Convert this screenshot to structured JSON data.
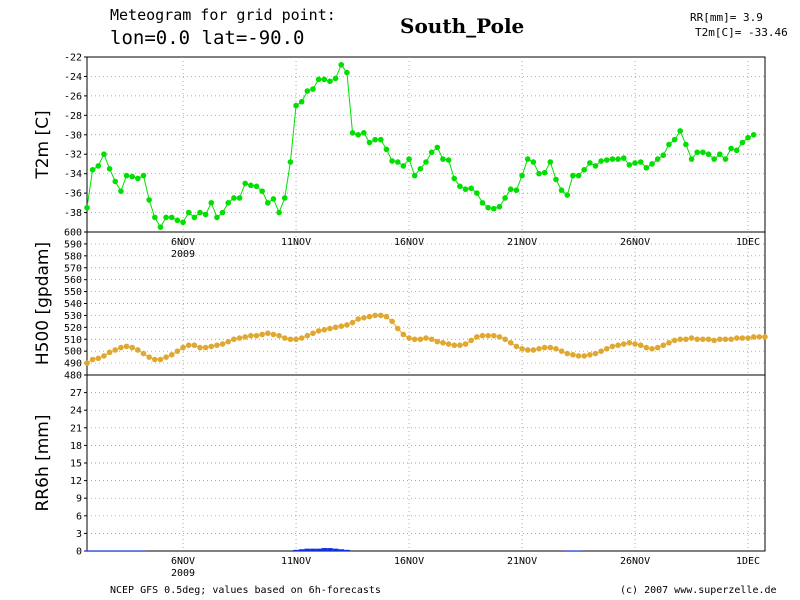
{
  "header": {
    "line1": "Meteogram for grid point:",
    "line2": "lon=0.0 lat=-90.0",
    "station": "South_Pole",
    "rr_readout": "RR[mm]= 3.9",
    "t2m_readout": "T2m[C]= -33.46"
  },
  "footer": {
    "source": "NCEP GFS 0.5deg; values based on 6h-forecasts",
    "copyright": "(c) 2007 www.superzelle.de"
  },
  "colors": {
    "t2m": "#00e000",
    "h500": "#e0a830",
    "rr6h": "#1030e0",
    "text": "#000000"
  },
  "chart_data": [
    {
      "type": "line",
      "ylabel": "T2m [C]",
      "ylim": [
        -40,
        -22
      ],
      "yticks": [
        -38,
        -36,
        -34,
        -32,
        -30,
        -28,
        -26,
        -24,
        -22
      ],
      "xlim": [
        0,
        120
      ],
      "xticks": [
        {
          "x": 17,
          "label": "6NOV"
        },
        {
          "x": 37,
          "label": "11NOV"
        },
        {
          "x": 57,
          "label": "16NOV"
        },
        {
          "x": 77,
          "label": "21NOV"
        },
        {
          "x": 97,
          "label": "26NOV"
        },
        {
          "x": 117,
          "label": "1DEC"
        }
      ],
      "series": [
        {
          "values": [
            -37.5,
            -33.6,
            -33.2,
            -32.0,
            -33.5,
            -34.8,
            -35.8,
            -34.2,
            -34.3,
            -34.5,
            -34.2,
            -36.7,
            -38.5,
            -39.5,
            -38.5,
            -38.5,
            -38.8,
            -39.0,
            -38.0,
            -38.5,
            -38.0,
            -38.2,
            -37.0,
            -38.5,
            -38.0,
            -37.0,
            -36.5,
            -36.5,
            -35.0,
            -35.2,
            -35.3,
            -35.8,
            -37.0,
            -36.6,
            -38.0,
            -36.5,
            -32.8,
            -27.0,
            -26.6,
            -25.5,
            -25.3,
            -24.3,
            -24.3,
            -24.5,
            -24.2,
            -22.8,
            -23.6,
            -29.8,
            -30.0,
            -29.8,
            -30.8,
            -30.5,
            -30.5,
            -31.5,
            -32.7,
            -32.8,
            -33.2,
            -32.5,
            -34.2,
            -33.5,
            -32.8,
            -31.8,
            -31.3,
            -32.5,
            -32.6,
            -34.5,
            -35.3,
            -35.6,
            -35.5,
            -36.0,
            -37.0,
            -37.5,
            -37.6,
            -37.4,
            -36.5,
            -35.6,
            -35.7,
            -34.2,
            -32.5,
            -32.8,
            -34.0,
            -33.9,
            -32.8,
            -34.6,
            -35.7,
            -36.2,
            -34.2,
            -34.2,
            -33.6,
            -32.9,
            -33.2,
            -32.7,
            -32.6,
            -32.5,
            -32.5,
            -32.4,
            -33.1,
            -32.9,
            -32.8,
            -33.4,
            -33.0,
            -32.5,
            -32.1,
            -31.0,
            -30.5,
            -29.6,
            -31.0,
            -32.5,
            -31.8,
            -31.8,
            -32.0,
            -32.5,
            -32.0,
            -32.5,
            -31.4,
            -31.6,
            -30.8,
            -30.3,
            -30.0
          ]
        }
      ]
    },
    {
      "type": "line",
      "ylabel": "H500 [gpdam]",
      "ylim": [
        480,
        600
      ],
      "yticks": [
        480,
        490,
        500,
        510,
        520,
        530,
        540,
        550,
        560,
        570,
        580,
        590,
        600
      ],
      "xlim": [
        0,
        120
      ],
      "series": [
        {
          "values": [
            490,
            493,
            494,
            496,
            499,
            501,
            503,
            504,
            503,
            501,
            498,
            495,
            493,
            493,
            495,
            497,
            500,
            503,
            505,
            505,
            503,
            503,
            504,
            505,
            506,
            508,
            510,
            511,
            512,
            513,
            513,
            514,
            515,
            514,
            513,
            511,
            510,
            510,
            511,
            513,
            515,
            517,
            518,
            519,
            520,
            521,
            522,
            524,
            527,
            528,
            529,
            530,
            530,
            529,
            525,
            519,
            514,
            511,
            510,
            510,
            511,
            510,
            508,
            507,
            506,
            505,
            505,
            506,
            509,
            512,
            513,
            513,
            513,
            512,
            510,
            507,
            504,
            502,
            501,
            501,
            502,
            503,
            503,
            502,
            500,
            498,
            497,
            496,
            496,
            497,
            498,
            500,
            502,
            504,
            505,
            506,
            507,
            506,
            505,
            503,
            502,
            503,
            505,
            507,
            509,
            510,
            510,
            511,
            510,
            510,
            510,
            509,
            510,
            510,
            510,
            511,
            511,
            511,
            512,
            512,
            512
          ]
        }
      ]
    },
    {
      "type": "bar",
      "ylabel": "RR6h [mm]",
      "ylim": [
        0,
        30
      ],
      "yticks": [
        0,
        3,
        6,
        9,
        12,
        15,
        18,
        21,
        24,
        27
      ],
      "xlim": [
        0,
        120
      ],
      "xticks": [
        {
          "x": 17,
          "label": "6NOV"
        },
        {
          "x": 37,
          "label": "11NOV"
        },
        {
          "x": 57,
          "label": "16NOV"
        },
        {
          "x": 77,
          "label": "21NOV"
        },
        {
          "x": 97,
          "label": "26NOV"
        },
        {
          "x": 117,
          "label": "1DEC"
        }
      ],
      "xyear": "2009",
      "series": [
        {
          "values": [
            0.1,
            0.1,
            0.1,
            0.1,
            0.1,
            0.1,
            0.1,
            0.1,
            0.1,
            0.1,
            0.1,
            0,
            0,
            0,
            0,
            0,
            0,
            0,
            0,
            0,
            0,
            0,
            0,
            0,
            0,
            0,
            0,
            0,
            0,
            0,
            0,
            0,
            0,
            0,
            0,
            0,
            0,
            0.2,
            0.3,
            0.4,
            0.4,
            0.4,
            0.5,
            0.5,
            0.4,
            0.3,
            0.2,
            0,
            0,
            0,
            0,
            0,
            0,
            0,
            0,
            0,
            0,
            0,
            0,
            0,
            0,
            0,
            0,
            0,
            0,
            0,
            0,
            0,
            0,
            0,
            0,
            0,
            0,
            0,
            0,
            0,
            0,
            0,
            0,
            0,
            0,
            0,
            0,
            0,
            0,
            0.1,
            0.1,
            0.1,
            0,
            0,
            0,
            0,
            0,
            0,
            0,
            0,
            0,
            0,
            0,
            0,
            0,
            0,
            0,
            0,
            0,
            0,
            0,
            0,
            0,
            0,
            0,
            0,
            0,
            0,
            0,
            0,
            0,
            0,
            0,
            0,
            0
          ]
        }
      ]
    }
  ]
}
